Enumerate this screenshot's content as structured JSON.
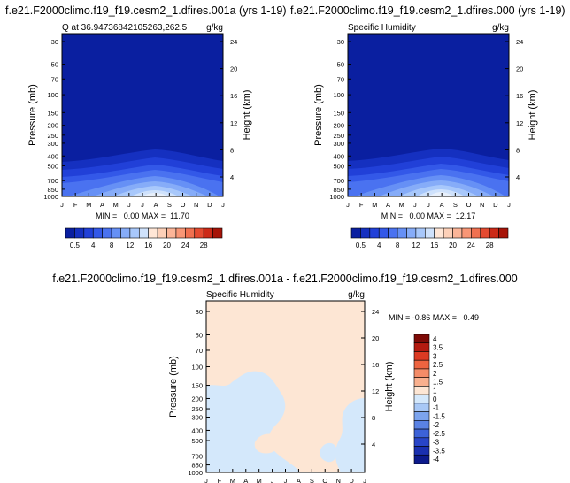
{
  "chart_data": [
    {
      "type": "heatmap",
      "title": "f.e21.F2000climo.f19_f19.cesm2_1.dfires.001a (yrs 1-19)",
      "subtitle": "Q at 36.94736842105263,262.5",
      "units": "g/kg",
      "ylabel": "Pressure (mb)",
      "ylabel_right": "Height (km)",
      "x_ticks": [
        "J",
        "F",
        "M",
        "A",
        "M",
        "J",
        "J",
        "A",
        "S",
        "O",
        "N",
        "D",
        "J"
      ],
      "y_ticks": [
        "30",
        "50",
        "70",
        "100",
        "150",
        "200",
        "250",
        "300",
        "400",
        "500",
        "700",
        "850",
        "1000"
      ],
      "y_ticks_right": [
        "24",
        "20",
        "16",
        "12",
        "8",
        "4"
      ],
      "min_max": "MIN =   0.00 MAX =  11.70",
      "colorbar_labels": [
        "0.5",
        "4",
        "8",
        "12",
        "16",
        "20",
        "24",
        "28"
      ]
    },
    {
      "type": "heatmap",
      "title": "f.e21.F2000climo.f19_f19.cesm2_1.dfires.000 (yrs 1-19)",
      "subtitle": "Specific Humidity",
      "units": "g/kg",
      "ylabel": "Pressure (mb)",
      "ylabel_right": "Height (km)",
      "x_ticks": [
        "J",
        "F",
        "M",
        "A",
        "M",
        "J",
        "J",
        "A",
        "S",
        "O",
        "N",
        "D",
        "J"
      ],
      "y_ticks": [
        "30",
        "50",
        "70",
        "100",
        "150",
        "200",
        "250",
        "300",
        "400",
        "500",
        "700",
        "850",
        "1000"
      ],
      "y_ticks_right": [
        "24",
        "20",
        "16",
        "12",
        "8",
        "4"
      ],
      "min_max": "MIN =   0.00 MAX =  12.17",
      "colorbar_labels": [
        "0.5",
        "4",
        "8",
        "12",
        "16",
        "20",
        "24",
        "28"
      ]
    },
    {
      "type": "heatmap",
      "title": "f.e21.F2000climo.f19_f19.cesm2_1.dfires.001a - f.e21.F2000climo.f19_f19.cesm2_1.dfires.000",
      "subtitle": "Specific Humidity",
      "units": "g/kg",
      "ylabel": "Pressure (mb)",
      "ylabel_right": "Height (km)",
      "x_ticks": [
        "J",
        "F",
        "M",
        "A",
        "M",
        "J",
        "J",
        "A",
        "S",
        "O",
        "N",
        "D",
        "J"
      ],
      "y_ticks": [
        "30",
        "50",
        "70",
        "100",
        "150",
        "200",
        "250",
        "300",
        "400",
        "500",
        "700",
        "850",
        "1000"
      ],
      "y_ticks_right": [
        "24",
        "20",
        "16",
        "12",
        "8",
        "4"
      ],
      "min_max": "MIN = -0.86 MAX =   0.49",
      "colorbar_labels": [
        "4",
        "3.5",
        "3",
        "2.5",
        "2",
        "1.5",
        "1",
        "0",
        "-1",
        "-1.5",
        "-2",
        "-2.5",
        "-3",
        "-3.5",
        "-4"
      ]
    }
  ],
  "colors": {
    "seq": [
      "#0a1fa0",
      "#1530c0",
      "#2140d8",
      "#3358e8",
      "#4a72f0",
      "#6690f5",
      "#86acf8",
      "#a8c8fb",
      "#cfe2fc",
      "#ffe6d6",
      "#fdd0b8",
      "#fcb598",
      "#f89676",
      "#f07050",
      "#e44a30",
      "#cc2a18",
      "#a61408"
    ],
    "diff": [
      "#7e0a06",
      "#b41a10",
      "#dc3a22",
      "#ee6440",
      "#f48c68",
      "#f9b08e",
      "#fde6d4",
      "#d4e8fb",
      "#a8c8f6",
      "#7ca4ee",
      "#5a82e4",
      "#3c62d8",
      "#2845c8",
      "#1a30b0",
      "#0c1a8c"
    ],
    "plot_bg_main": "#0a1fa0",
    "diff_bg": "#fde6d4",
    "diff_blob": "#d4e8fb"
  }
}
